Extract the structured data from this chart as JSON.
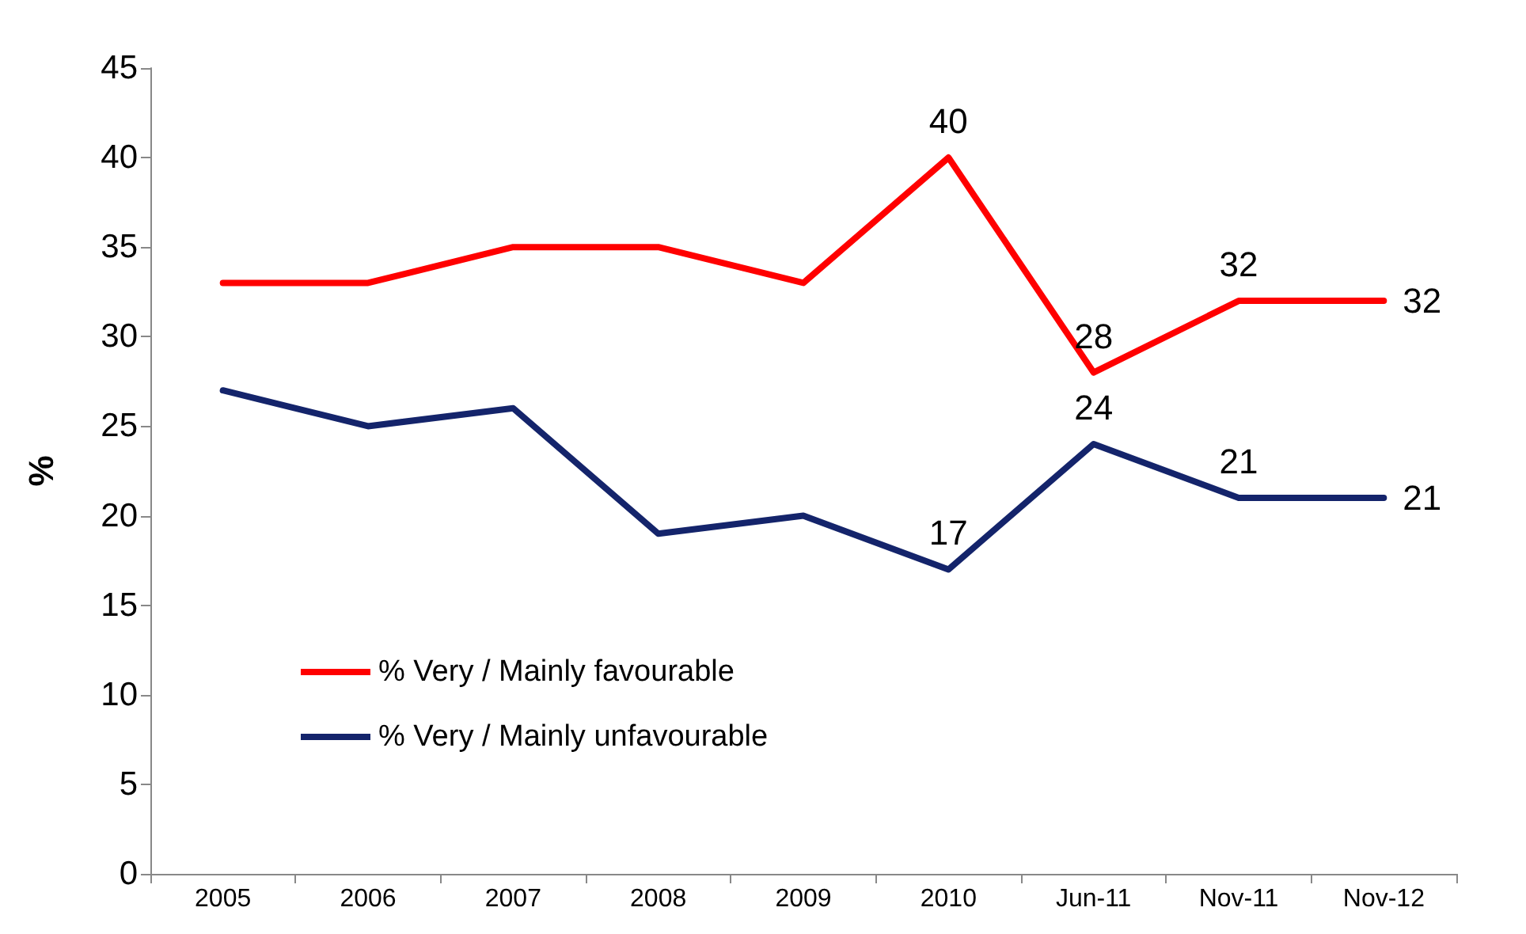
{
  "chart_data": {
    "type": "line",
    "ylabel": "%",
    "categories": [
      "2005",
      "2006",
      "2007",
      "2008",
      "2009",
      "2010",
      "Jun-11",
      "Nov-11",
      "Nov-12"
    ],
    "series": [
      {
        "name": "% Very / Mainly favourable",
        "color": "#ff0000",
        "values": [
          33,
          33,
          35,
          35,
          33,
          40,
          28,
          32,
          32
        ],
        "value_labels": [
          null,
          null,
          null,
          null,
          null,
          "40",
          "28",
          "32",
          "32"
        ]
      },
      {
        "name": "% Very / Mainly unfavourable",
        "color": "#14246b",
        "values": [
          27,
          25,
          26,
          19,
          20,
          17,
          24,
          21,
          21
        ],
        "value_labels": [
          null,
          null,
          null,
          null,
          null,
          "17",
          "24",
          "21",
          "21"
        ]
      }
    ],
    "ylim": [
      0,
      45
    ],
    "yticks": [
      0,
      5,
      10,
      15,
      20,
      25,
      30,
      35,
      40,
      45
    ],
    "grid": false,
    "legend": "bottom left",
    "marker": "none",
    "line_style": "solid"
  }
}
